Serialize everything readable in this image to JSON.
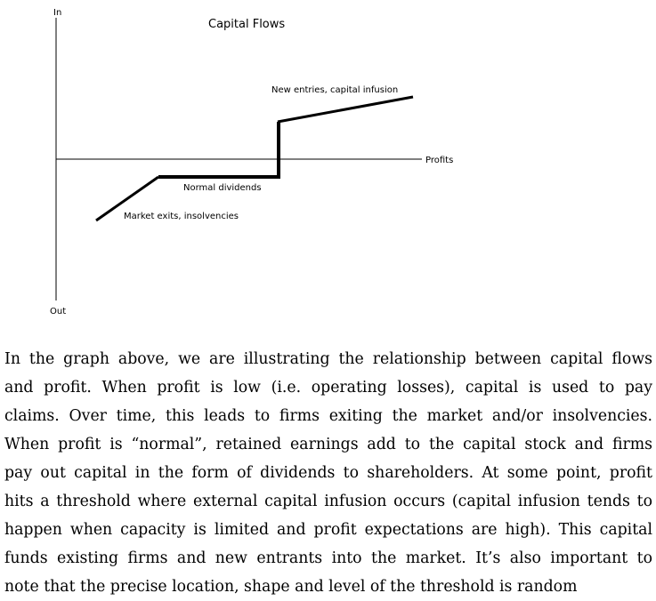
{
  "diagram": {
    "title": "Capital Flows",
    "y_axis_top_label": "In",
    "y_axis_bottom_label": "Out",
    "x_axis_label": "Profits",
    "segment_labels": {
      "market_exits": "Market exits, insolvencies",
      "normal_dividends": "Normal dividends",
      "new_entries": "New entries, capital infusion"
    }
  },
  "paragraph": {
    "lines": [
      "In the graph above, we are illustrating the relationship between capital flows",
      "and profit.  When profit is low (i.e.  operating losses), capital is used to pay",
      "claims.  Over time, this leads to firms exiting the market and/or insolvencies.",
      "When profit is “normal”, retained earnings add to the capital stock and firms",
      "pay out capital in the form of dividends to shareholders.  At some point, profit",
      "hits a threshold where external capital infusion occurs (capital infusion tends to",
      "happen when capacity is limited and profit expectations are high).  This capital",
      "funds existing firms and new entrants into the market.  It’s also important to",
      "note that the precise location, shape and level of the threshold is random"
    ]
  }
}
